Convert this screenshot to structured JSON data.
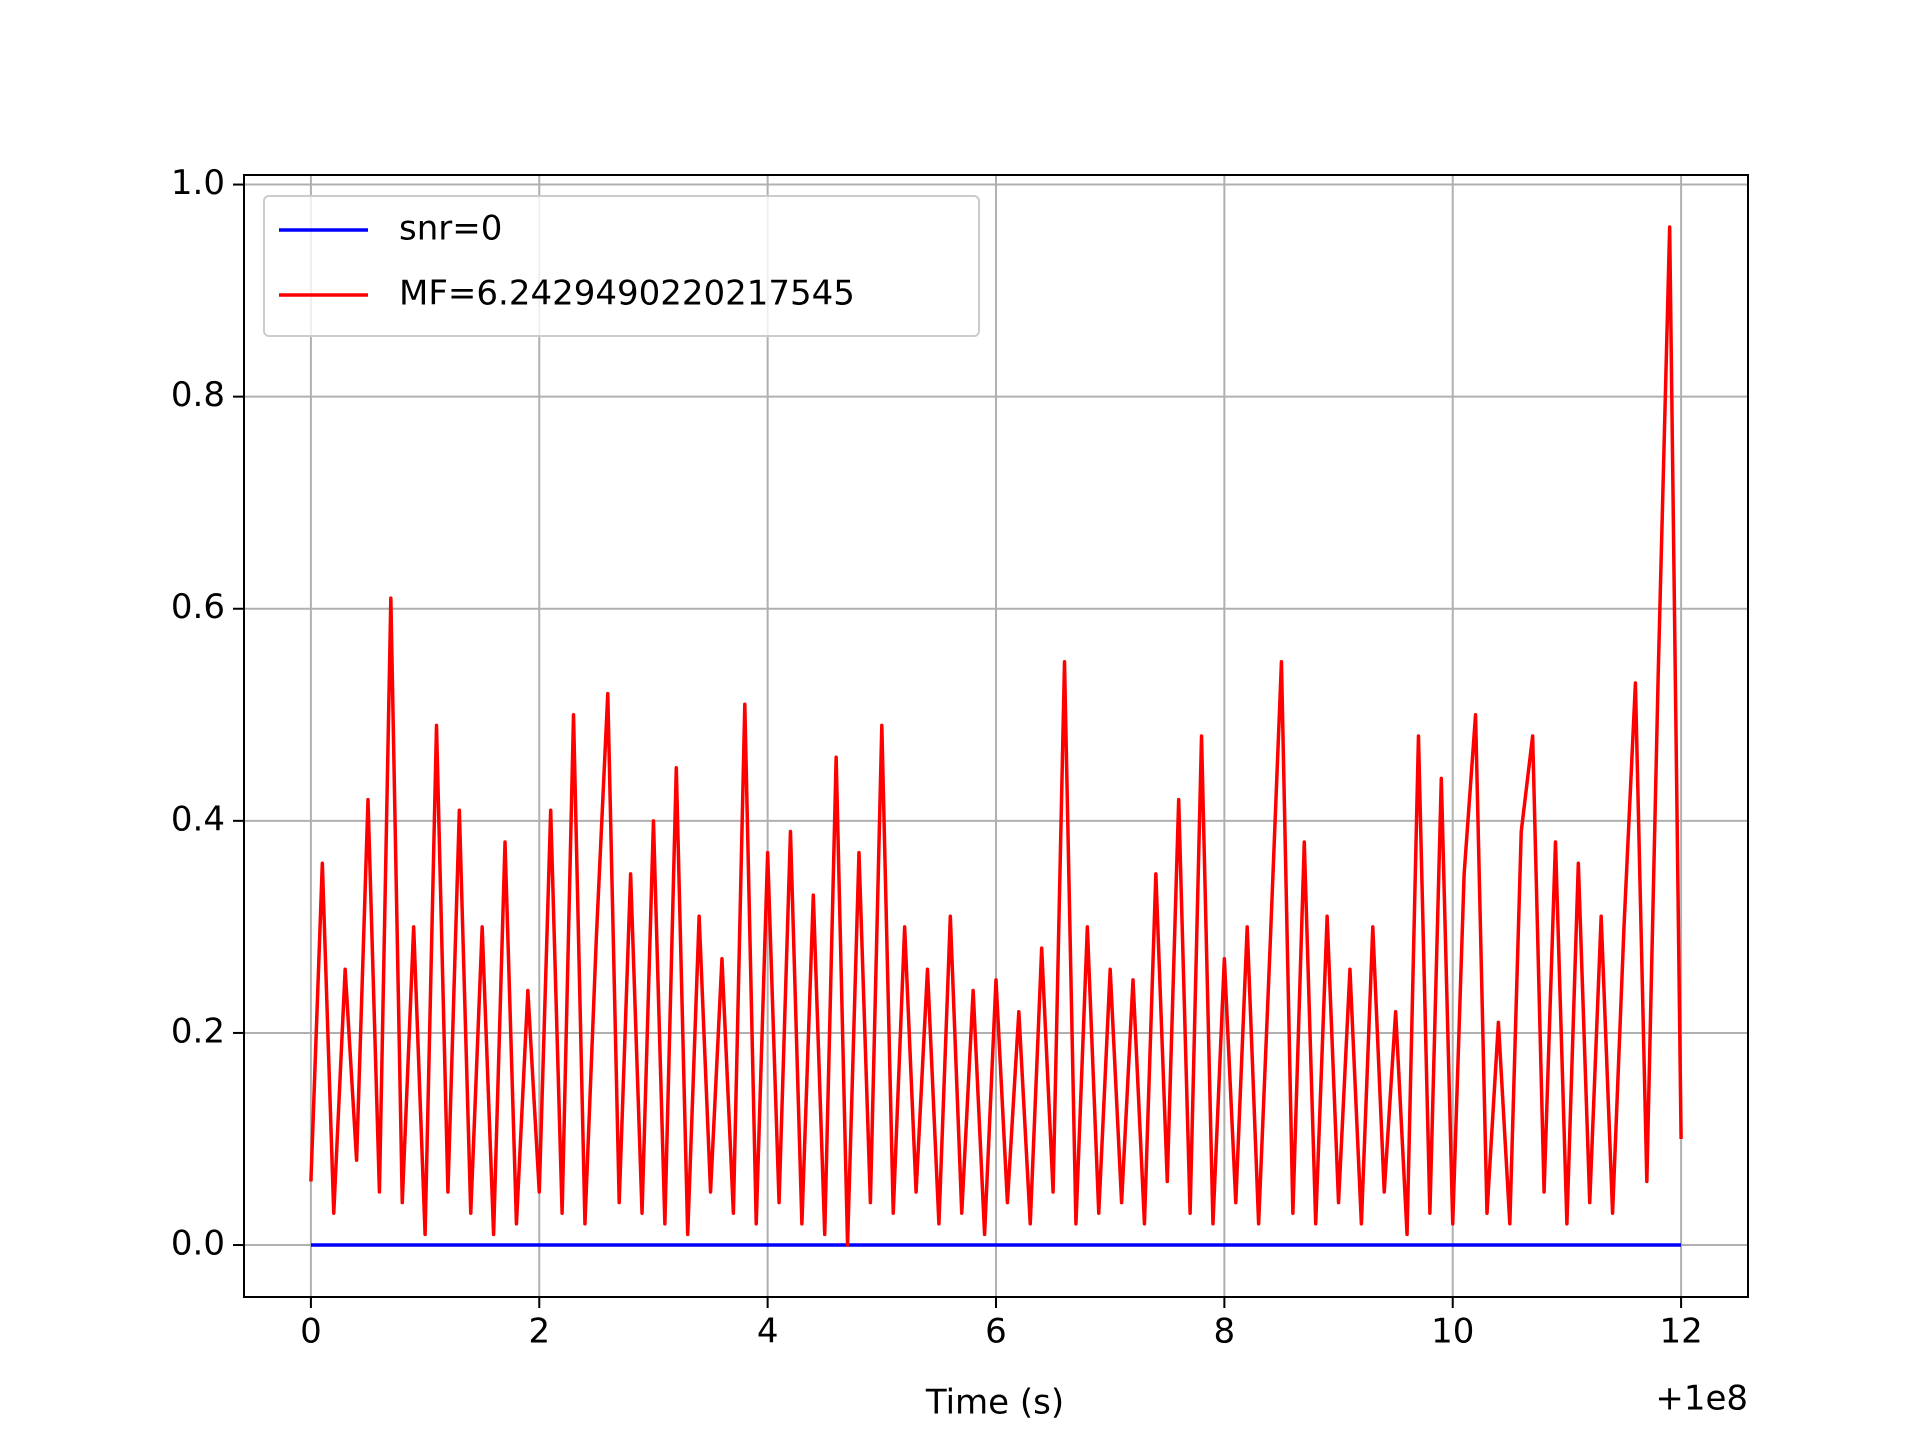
{
  "chart_data": {
    "type": "line",
    "xlabel": "Time (s)",
    "x_offset_label": "+1e8",
    "xlim": [
      99999999.414,
      100000012.586
    ],
    "ylim": [
      -0.049,
      1.009
    ],
    "xticks": [
      {
        "value": 100000000,
        "label": "0"
      },
      {
        "value": 100000002,
        "label": "2"
      },
      {
        "value": 100000004,
        "label": "4"
      },
      {
        "value": 100000006,
        "label": "6"
      },
      {
        "value": 100000008,
        "label": "8"
      },
      {
        "value": 100000010,
        "label": "10"
      },
      {
        "value": 100000012,
        "label": "12"
      }
    ],
    "yticks": [
      {
        "value": 0,
        "label": "0.0"
      },
      0.2,
      0.4,
      0.6,
      0.8,
      {
        "value": 1,
        "label": "1.0"
      }
    ],
    "grid": true,
    "legend": "upper left",
    "series": [
      {
        "name": "snr=0",
        "color": "#0000ff",
        "x": [
          100000000,
          100000012
        ],
        "values": [
          0,
          0
        ]
      },
      {
        "name": "MF=6.2429490220217545",
        "color": "#ff0000",
        "x": [
          100000000,
          100000000.1,
          100000000.2,
          100000000.3,
          100000000.4,
          100000000.5,
          100000000.6,
          100000000.7,
          100000000.8,
          100000000.9,
          100000001,
          100000001.1,
          100000001.2,
          100000001.3,
          100000001.4,
          100000001.5,
          100000001.6,
          100000001.7,
          100000001.8,
          100000001.9,
          100000002,
          100000002.1,
          100000002.2,
          100000002.3,
          100000002.4,
          100000002.5,
          100000002.6,
          100000002.7,
          100000002.8,
          100000002.9,
          100000003,
          100000003.1,
          100000003.2,
          100000003.3,
          100000003.4,
          100000003.5,
          100000003.6,
          100000003.7,
          100000003.8,
          100000003.9,
          100000004,
          100000004.1,
          100000004.2,
          100000004.3,
          100000004.4,
          100000004.5,
          100000004.6,
          100000004.7,
          100000004.8,
          100000004.9,
          100000005,
          100000005.1,
          100000005.2,
          100000005.3,
          100000005.4,
          100000005.5,
          100000005.6,
          100000005.7,
          100000005.8,
          100000005.9,
          100000006,
          100000006.1,
          100000006.2,
          100000006.3,
          100000006.4,
          100000006.5,
          100000006.6,
          100000006.7,
          100000006.8,
          100000006.9,
          100000007,
          100000007.1,
          100000007.2,
          100000007.3,
          100000007.4,
          100000007.5,
          100000007.6,
          100000007.7,
          100000007.8,
          100000007.9,
          100000008,
          100000008.1,
          100000008.2,
          100000008.3,
          100000008.4,
          100000008.5,
          100000008.6,
          100000008.7,
          100000008.8,
          100000008.9,
          100000009,
          100000009.1,
          100000009.2,
          100000009.3,
          100000009.4,
          100000009.5,
          100000009.6,
          100000009.7,
          100000009.8,
          100000009.9,
          100000010,
          100000010.1,
          100000010.2,
          100000010.3,
          100000010.4,
          100000010.5,
          100000010.6,
          100000010.7,
          100000010.8,
          100000010.9,
          100000011,
          100000011.1,
          100000011.2,
          100000011.3,
          100000011.4,
          100000011.5,
          100000011.6,
          100000011.7,
          100000011.8,
          100000011.9,
          100000012
        ],
        "values": [
          0.06,
          0.36,
          0.03,
          0.26,
          0.08,
          0.42,
          0.05,
          0.61,
          0.04,
          0.3,
          0.01,
          0.49,
          0.05,
          0.41,
          0.03,
          0.3,
          0.01,
          0.38,
          0.02,
          0.24,
          0.05,
          0.41,
          0.03,
          0.5,
          0.02,
          0.29,
          0.52,
          0.04,
          0.35,
          0.03,
          0.4,
          0.02,
          0.45,
          0.01,
          0.31,
          0.05,
          0.27,
          0.03,
          0.51,
          0.02,
          0.37,
          0.04,
          0.39,
          0.02,
          0.33,
          0.01,
          0.46,
          0.0,
          0.37,
          0.04,
          0.49,
          0.03,
          0.3,
          0.05,
          0.26,
          0.02,
          0.31,
          0.03,
          0.24,
          0.01,
          0.25,
          0.04,
          0.22,
          0.02,
          0.28,
          0.05,
          0.55,
          0.02,
          0.3,
          0.03,
          0.26,
          0.04,
          0.25,
          0.02,
          0.35,
          0.06,
          0.42,
          0.03,
          0.48,
          0.02,
          0.27,
          0.04,
          0.3,
          0.02,
          0.28,
          0.55,
          0.03,
          0.38,
          0.02,
          0.31,
          0.04,
          0.26,
          0.02,
          0.3,
          0.05,
          0.22,
          0.01,
          0.48,
          0.03,
          0.44,
          0.02,
          0.35,
          0.5,
          0.03,
          0.21,
          0.02,
          0.39,
          0.48,
          0.05,
          0.38,
          0.02,
          0.36,
          0.04,
          0.31,
          0.03,
          0.3,
          0.53,
          0.06,
          0.54,
          0.96,
          0.1
        ]
      }
    ]
  }
}
